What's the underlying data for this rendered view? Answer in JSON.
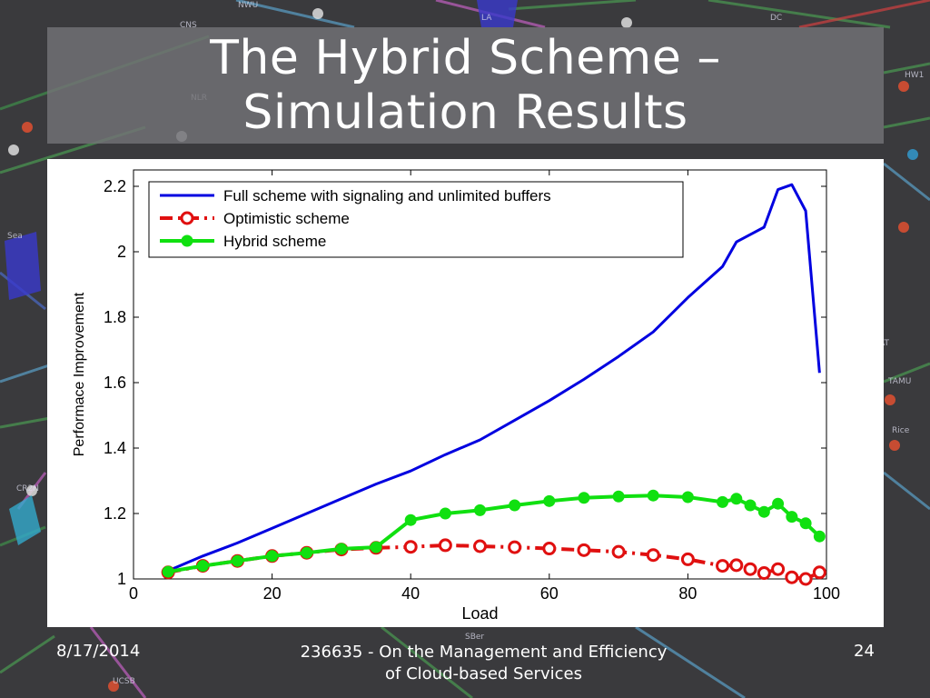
{
  "slide": {
    "title_line1": "The Hybrid Scheme –",
    "title_line2": "Simulation Results",
    "footer_date": "8/17/2014",
    "footer_text_line1": "236635 - On the Management and Efficiency",
    "footer_text_line2": "of Cloud-based Services",
    "slide_number": "24"
  },
  "background": {
    "node_labels": [
      "NWU",
      "CNS",
      "Sea",
      "CR2N",
      "TAMU",
      "Rice",
      "HW1",
      "UCSB",
      "SBer",
      "NLR",
      "LA",
      "DC",
      "AT"
    ]
  },
  "chart_data": {
    "type": "line",
    "title": "",
    "xlabel": "Load",
    "ylabel": "Performace Improvement",
    "xlim": [
      0,
      100
    ],
    "ylim": [
      1,
      2.25
    ],
    "xticks": [
      0,
      20,
      40,
      60,
      80,
      100
    ],
    "xtick_labels": [
      "0",
      "20",
      "40",
      "60",
      "80",
      "100"
    ],
    "yticks": [
      1,
      1.2,
      1.4,
      1.6,
      1.8,
      2,
      2.2
    ],
    "ytick_labels": [
      "1",
      "1.2",
      "1.4",
      "1.6",
      "1.8",
      "2",
      "2.2"
    ],
    "grid": false,
    "legend_position": "top-left",
    "series": [
      {
        "name": "Full scheme with signaling and unlimited buffers",
        "color": "#0000e0",
        "style": "solid",
        "markers": false,
        "x": [
          5,
          10,
          15,
          20,
          25,
          30,
          35,
          40,
          45,
          50,
          55,
          60,
          65,
          70,
          75,
          80,
          85,
          87,
          91,
          93,
          95,
          97,
          99
        ],
        "y": [
          1.025,
          1.07,
          1.11,
          1.155,
          1.2,
          1.245,
          1.29,
          1.33,
          1.38,
          1.425,
          1.485,
          1.545,
          1.61,
          1.68,
          1.755,
          1.86,
          1.955,
          2.03,
          2.075,
          2.19,
          2.205,
          2.125,
          1.63
        ]
      },
      {
        "name": "Optimistic scheme",
        "color": "#e01010",
        "style": "dashdot",
        "markers": true,
        "x": [
          5,
          10,
          15,
          20,
          25,
          30,
          35,
          40,
          45,
          50,
          55,
          60,
          65,
          70,
          75,
          80,
          85,
          87,
          89,
          91,
          93,
          95,
          97,
          99
        ],
        "y": [
          1.02,
          1.04,
          1.055,
          1.07,
          1.08,
          1.09,
          1.095,
          1.098,
          1.103,
          1.1,
          1.097,
          1.093,
          1.088,
          1.083,
          1.073,
          1.06,
          1.04,
          1.042,
          1.03,
          1.018,
          1.03,
          1.005,
          1.0,
          1.02
        ]
      },
      {
        "name": "Hybrid scheme",
        "color": "#10e010",
        "style": "solid",
        "markers": true,
        "x": [
          5,
          10,
          15,
          20,
          25,
          30,
          35,
          40,
          45,
          50,
          55,
          60,
          65,
          70,
          75,
          80,
          85,
          87,
          89,
          91,
          93,
          95,
          97,
          99
        ],
        "y": [
          1.022,
          1.04,
          1.055,
          1.07,
          1.08,
          1.092,
          1.097,
          1.18,
          1.2,
          1.21,
          1.225,
          1.238,
          1.248,
          1.252,
          1.255,
          1.25,
          1.235,
          1.245,
          1.225,
          1.205,
          1.23,
          1.19,
          1.17,
          1.13
        ]
      }
    ]
  }
}
